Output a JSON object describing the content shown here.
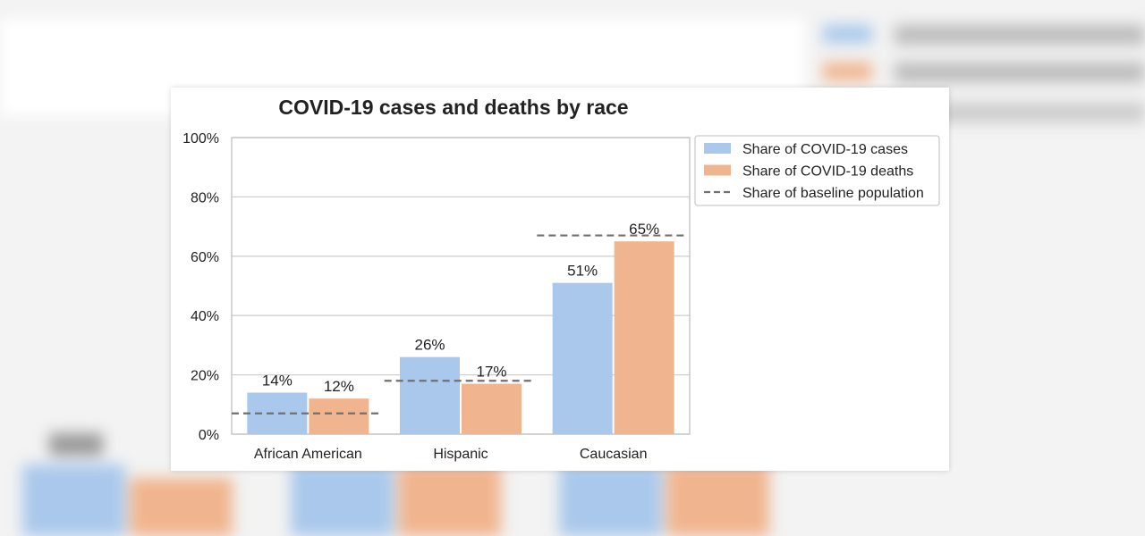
{
  "chart_data": {
    "type": "bar",
    "title": "COVID-19 cases and deaths by race",
    "xlabel": "",
    "ylabel": "",
    "categories": [
      "African American",
      "Hispanic",
      "Caucasian"
    ],
    "series": [
      {
        "name": "Share of COVID-19 cases",
        "values": [
          14,
          26,
          51
        ],
        "labels": [
          "14%",
          "26%",
          "51%"
        ],
        "color": "#a9c8eb"
      },
      {
        "name": "Share of COVID-19 deaths",
        "values": [
          12,
          17,
          65
        ],
        "labels": [
          "12%",
          "17%",
          "65%"
        ],
        "color": "#f0b48e"
      }
    ],
    "baseline": {
      "name": "Share of baseline population",
      "values": [
        7,
        18,
        67
      ],
      "color": "#707070",
      "style": "dashed"
    },
    "ylim": [
      0,
      100
    ],
    "yticks": [
      "0%",
      "20%",
      "40%",
      "60%",
      "80%",
      "100%"
    ],
    "grid": true,
    "legend": "top-right"
  }
}
